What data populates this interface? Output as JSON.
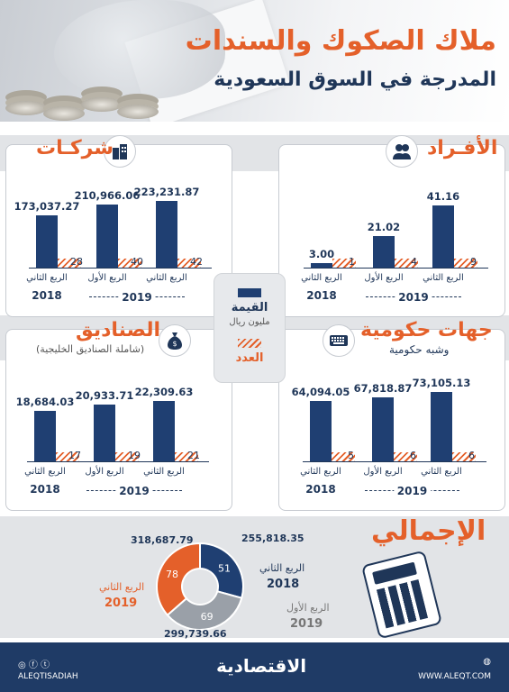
{
  "header": {
    "title": "ملاك الصكوك والسندات",
    "subtitle": "المدرجة في السوق السعودية"
  },
  "legend": {
    "value_label": "القيمة",
    "value_unit": "مليون ريال",
    "count_label": "العدد"
  },
  "colors": {
    "accent": "#e4602a",
    "navy": "#1f3f72",
    "band": "#e2e4e7"
  },
  "periods": {
    "q2": "الربع الثاني",
    "q1": "الربع الأول",
    "y2018": "2018",
    "y2019": "2019"
  },
  "sections": {
    "individuals": {
      "title": "الأفـراد",
      "icon": "people-icon"
    },
    "companies": {
      "title": "شركـات",
      "icon": "buildings-icon"
    },
    "government": {
      "title": "جهات حكومية",
      "note": "وشبه حكومية",
      "icon": "keyboard-icon"
    },
    "funds": {
      "title": "الصناديق",
      "note": "(شاملة الصناديق الخليجية)",
      "icon": "money-bag-icon"
    },
    "total": {
      "title": "الإجمالي",
      "icon": "calculator-icon"
    }
  },
  "chart_data": [
    {
      "type": "bar",
      "name_key": "companies",
      "categories": [
        "الربع الثاني 2018",
        "الربع الأول 2019",
        "الربع الثاني 2019"
      ],
      "values": [
        173037.27,
        210966.06,
        223231.87
      ],
      "value_labels": [
        "173,037.27",
        "210,966.06",
        "223,231.87"
      ],
      "counts": [
        28,
        40,
        42
      ],
      "ylim": [
        0,
        240000
      ]
    },
    {
      "type": "bar",
      "name_key": "individuals",
      "categories": [
        "الربع الثاني 2018",
        "الربع الأول 2019",
        "الربع الثاني 2019"
      ],
      "values": [
        3.0,
        21.02,
        41.16
      ],
      "value_labels": [
        "3.00",
        "21.02",
        "41.16"
      ],
      "counts": [
        1,
        4,
        9
      ],
      "ylim": [
        0,
        45
      ]
    },
    {
      "type": "bar",
      "name_key": "funds",
      "categories": [
        "الربع الثاني 2018",
        "الربع الأول 2019",
        "الربع الثاني 2019"
      ],
      "values": [
        18684.03,
        20933.71,
        22309.63
      ],
      "value_labels": [
        "18,684.03",
        "20,933.71",
        "22,309.63"
      ],
      "counts": [
        17,
        19,
        21
      ],
      "ylim": [
        0,
        24000
      ]
    },
    {
      "type": "bar",
      "name_key": "government",
      "categories": [
        "الربع الثاني 2018",
        "الربع الأول 2019",
        "الربع الثاني 2019"
      ],
      "values": [
        64094.05,
        67818.87,
        73105.13
      ],
      "value_labels": [
        "64,094.05",
        "67,818.87",
        "73,105.13"
      ],
      "counts": [
        5,
        6,
        6
      ],
      "ylim": [
        0,
        80000
      ]
    },
    {
      "type": "pie",
      "name_key": "total",
      "slices": [
        {
          "period": "الربع الثاني 2018",
          "value": 255818.35,
          "value_label": "255,818.35",
          "count": 51,
          "color": "#1f3f72"
        },
        {
          "period": "الربع الأول 2019",
          "value": 299739.66,
          "value_label": "299,739.66",
          "count": 69,
          "color": "#9aa0a8"
        },
        {
          "period": "الربع الثاني 2019",
          "value": 318687.79,
          "value_label": "318,687.79",
          "count": 78,
          "color": "#e4602a"
        }
      ]
    }
  ],
  "footer": {
    "handle": "ALEQTISADIAH",
    "brand": "الاقتصادية",
    "site": "WWW.ALEQT.COM"
  }
}
